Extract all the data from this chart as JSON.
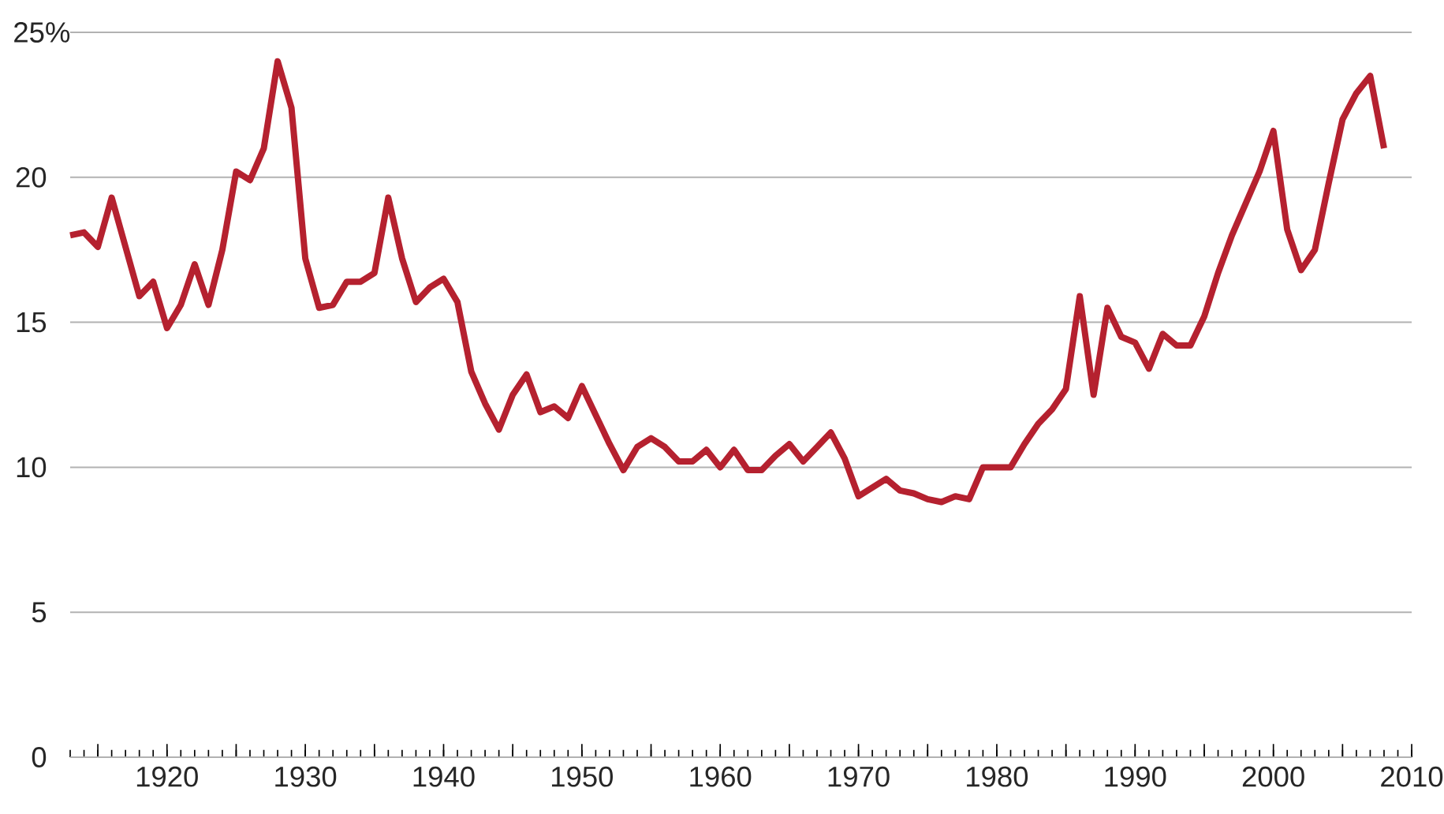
{
  "chart_data": {
    "type": "line",
    "x": [
      1913,
      1914,
      1915,
      1916,
      1917,
      1918,
      1919,
      1920,
      1921,
      1922,
      1923,
      1924,
      1925,
      1926,
      1927,
      1928,
      1929,
      1930,
      1931,
      1932,
      1933,
      1934,
      1935,
      1936,
      1937,
      1938,
      1939,
      1940,
      1941,
      1942,
      1943,
      1944,
      1945,
      1946,
      1947,
      1948,
      1949,
      1950,
      1951,
      1952,
      1953,
      1954,
      1955,
      1956,
      1957,
      1958,
      1959,
      1960,
      1961,
      1962,
      1963,
      1964,
      1965,
      1966,
      1967,
      1968,
      1969,
      1970,
      1971,
      1972,
      1973,
      1974,
      1975,
      1976,
      1977,
      1978,
      1979,
      1980,
      1981,
      1982,
      1983,
      1984,
      1985,
      1986,
      1987,
      1988,
      1989,
      1990,
      1991,
      1992,
      1993,
      1994,
      1995,
      1996,
      1997,
      1998,
      1999,
      2000,
      2001,
      2002,
      2003,
      2004,
      2005,
      2006,
      2007,
      2008
    ],
    "series": [
      {
        "color": "#b5212f",
        "values": [
          18.0,
          18.1,
          17.6,
          19.3,
          17.6,
          15.9,
          16.4,
          14.8,
          15.6,
          17.0,
          15.6,
          17.5,
          20.2,
          19.9,
          21.0,
          24.0,
          22.4,
          17.2,
          15.5,
          15.6,
          16.4,
          16.4,
          16.7,
          19.3,
          17.2,
          15.7,
          16.2,
          16.5,
          15.7,
          13.3,
          12.2,
          11.3,
          12.5,
          13.2,
          11.9,
          12.1,
          11.7,
          12.8,
          11.8,
          10.8,
          9.9,
          10.7,
          11.0,
          10.7,
          10.2,
          10.2,
          10.6,
          10.0,
          10.6,
          9.9,
          9.9,
          10.4,
          10.8,
          10.2,
          10.7,
          11.2,
          10.3,
          9.0,
          9.3,
          9.6,
          9.2,
          9.1,
          8.9,
          8.8,
          9.0,
          8.9,
          10.0,
          10.0,
          10.0,
          10.8,
          11.5,
          12.0,
          12.7,
          15.9,
          12.5,
          15.5,
          14.5,
          14.3,
          13.4,
          14.6,
          14.2,
          14.2,
          15.2,
          16.7,
          18.0,
          19.1,
          20.2,
          21.6,
          18.2,
          16.8,
          17.5,
          19.8,
          22.0,
          22.9,
          23.5,
          21.0
        ]
      }
    ],
    "xlim": [
      1913,
      2010
    ],
    "ylim": [
      0,
      25
    ],
    "xticks": [
      {
        "value": 1915,
        "label": null
      },
      1920,
      {
        "value": 1925,
        "label": null
      },
      1930,
      {
        "value": 1935,
        "label": null
      },
      1940,
      {
        "value": 1945,
        "label": null
      },
      1950,
      {
        "value": 1955,
        "label": null
      },
      1960,
      {
        "value": 1965,
        "label": null
      },
      1970,
      {
        "value": 1975,
        "label": null
      },
      1980,
      {
        "value": 1985,
        "label": null
      },
      1990,
      {
        "value": 1995,
        "label": null
      },
      2000,
      {
        "value": 2005,
        "label": null
      },
      2010
    ],
    "yticks": [
      0,
      5,
      10,
      15,
      20,
      {
        "value": 25,
        "label": "25%"
      }
    ],
    "grid": "y",
    "marker": "none",
    "line_style": "solid"
  }
}
